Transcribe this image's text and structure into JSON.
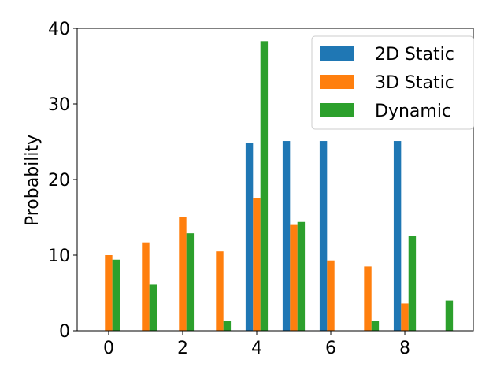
{
  "chart_data": {
    "type": "bar",
    "title": "",
    "xlabel": "",
    "ylabel": "Probability",
    "x": [
      0,
      1,
      2,
      3,
      4,
      5,
      6,
      7,
      8,
      9
    ],
    "xticks": [
      0,
      2,
      4,
      6,
      8
    ],
    "yticks": [
      0,
      10,
      20,
      30,
      40
    ],
    "xlim": [
      -0.85,
      9.85
    ],
    "ylim": [
      0,
      40
    ],
    "grid": false,
    "legend_position": "top-right",
    "series": [
      {
        "name": "2D Static",
        "color": "#1f77b4",
        "values": [
          0,
          0,
          0,
          0,
          24.8,
          25.1,
          25.1,
          0,
          25.1,
          0
        ]
      },
      {
        "name": "3D Static",
        "color": "#ff7f0e",
        "values": [
          10.0,
          11.7,
          15.1,
          10.5,
          17.5,
          14.0,
          9.3,
          8.5,
          3.6,
          0
        ]
      },
      {
        "name": "Dynamic",
        "color": "#2ca02c",
        "values": [
          9.4,
          6.1,
          12.9,
          1.3,
          38.3,
          14.4,
          0,
          1.3,
          12.5,
          4.0
        ]
      }
    ]
  }
}
